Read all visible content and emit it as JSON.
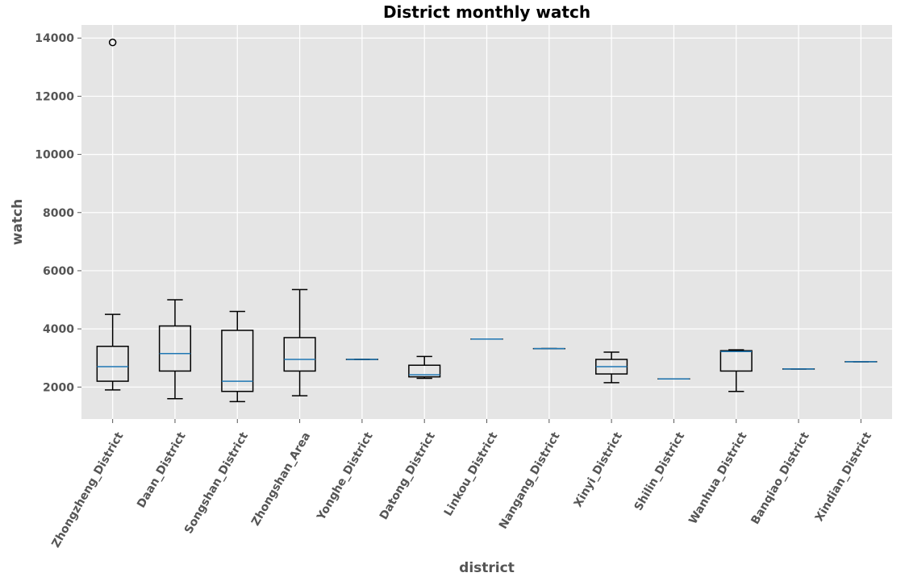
{
  "chart_data": {
    "type": "boxplot",
    "title": "District monthly watch",
    "xlabel": "district",
    "ylabel": "watch",
    "ylim": [
      900,
      14450
    ],
    "yticks": [
      2000,
      4000,
      6000,
      8000,
      10000,
      12000,
      14000
    ],
    "grid": true,
    "background_color": "#e5e5e5",
    "grid_color": "#ffffff",
    "box_color": "#000000",
    "median_color": "#1f77b4",
    "categories": [
      "Zhongzheng_District",
      "Daan_District",
      "Songshan_District",
      "Zhongshan_Area",
      "Yonghe_District",
      "Datong_District",
      "Linkou_District",
      "Nangang_District",
      "Xinyi_District",
      "Shilin_District",
      "Wanhua_District",
      "Banqiao_District",
      "Xindian_District"
    ],
    "boxes": [
      {
        "whislo": 1900,
        "q1": 2200,
        "med": 2700,
        "q3": 3400,
        "whishi": 4500,
        "fliers": [
          13850
        ]
      },
      {
        "whislo": 1600,
        "q1": 2550,
        "med": 3150,
        "q3": 4100,
        "whishi": 5000,
        "fliers": []
      },
      {
        "whislo": 1500,
        "q1": 1850,
        "med": 2200,
        "q3": 3950,
        "whishi": 4600,
        "fliers": []
      },
      {
        "whislo": 1700,
        "q1": 2550,
        "med": 2950,
        "q3": 3700,
        "whishi": 5350,
        "fliers": []
      },
      {
        "whislo": 2950,
        "q1": 2950,
        "med": 2950,
        "q3": 2950,
        "whishi": 2950,
        "fliers": []
      },
      {
        "whislo": 2300,
        "q1": 2350,
        "med": 2420,
        "q3": 2750,
        "whishi": 3050,
        "fliers": []
      },
      {
        "whislo": 3650,
        "q1": 3650,
        "med": 3650,
        "q3": 3650,
        "whishi": 3650,
        "fliers": []
      },
      {
        "whislo": 3320,
        "q1": 3320,
        "med": 3320,
        "q3": 3320,
        "whishi": 3320,
        "fliers": []
      },
      {
        "whislo": 2150,
        "q1": 2450,
        "med": 2700,
        "q3": 2950,
        "whishi": 3200,
        "fliers": []
      },
      {
        "whislo": 2280,
        "q1": 2280,
        "med": 2280,
        "q3": 2280,
        "whishi": 2280,
        "fliers": []
      },
      {
        "whislo": 1850,
        "q1": 2550,
        "med": 3220,
        "q3": 3250,
        "whishi": 3280,
        "fliers": []
      },
      {
        "whislo": 2620,
        "q1": 2620,
        "med": 2620,
        "q3": 2620,
        "whishi": 2620,
        "fliers": []
      },
      {
        "whislo": 2870,
        "q1": 2870,
        "med": 2870,
        "q3": 2870,
        "whishi": 2870,
        "fliers": []
      }
    ]
  }
}
